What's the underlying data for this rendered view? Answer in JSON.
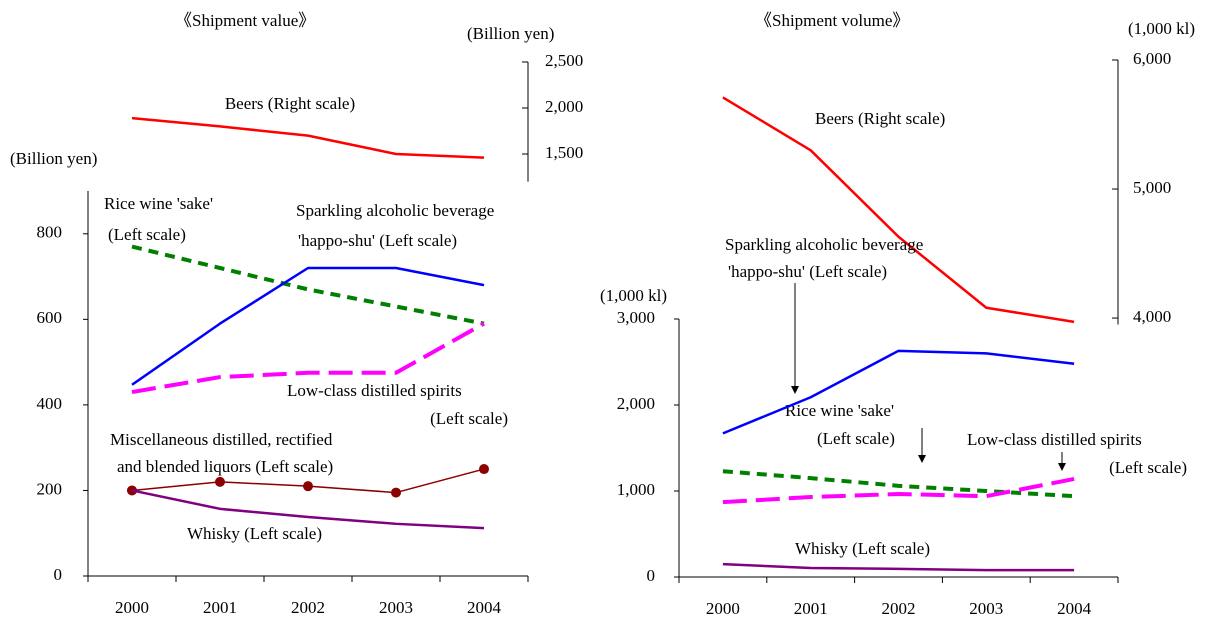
{
  "chart_data": [
    {
      "type": "line",
      "title": "《Shipment value》",
      "ylabel": "(Billion yen)",
      "y2label": "(Billion yen)",
      "categories": [
        "2000",
        "2001",
        "2002",
        "2003",
        "2004"
      ],
      "ylim": [
        0,
        900
      ],
      "yticks": [
        0,
        200,
        400,
        600,
        800
      ],
      "y2lim": [
        1200,
        2500
      ],
      "y2ticks": [
        {
          "value": 1500,
          "label": "1,500"
        },
        {
          "value": 2000,
          "label": "2,000"
        },
        {
          "value": 2500,
          "label": "2,500"
        }
      ],
      "series": [
        {
          "label": [
            "Beers (Right scale)"
          ],
          "color": "#ff0000",
          "axis": "y2",
          "values": [
            1890,
            1800,
            1700,
            1500,
            1460
          ]
        },
        {
          "label": [
            "Rice wine 'sake'",
            "(Left scale)"
          ],
          "color": "#008000",
          "style": "dotted",
          "values": [
            770,
            720,
            670,
            630,
            590
          ]
        },
        {
          "label": [
            "Sparkling alcoholic beverage",
            "'happo-shu' (Left scale)"
          ],
          "color": "#0000ff",
          "values": [
            447,
            590,
            720,
            720,
            680
          ]
        },
        {
          "label": [
            "Low-class distilled spirits",
            "(Left scale)"
          ],
          "color": "#ff00ff",
          "style": "dashed",
          "values": [
            430,
            465,
            475,
            475,
            590
          ]
        },
        {
          "label": [
            "Miscellaneous distilled, rectified",
            "and blended liquors (Left scale)"
          ],
          "color": "#8b0000",
          "markers": true,
          "values": [
            200,
            220,
            210,
            195,
            250
          ]
        },
        {
          "label": [
            "Whisky (Left scale)"
          ],
          "color": "#800080",
          "values": [
            200,
            157,
            138,
            122,
            112
          ]
        }
      ]
    },
    {
      "type": "line",
      "title": "《Shipment volume》",
      "ylabel": "(1,000 kl)",
      "y2label": "(1,000 kl)",
      "categories": [
        "2000",
        "2001",
        "2002",
        "2003",
        "2004"
      ],
      "ylim": [
        0,
        3000
      ],
      "yticks": [
        0,
        {
          "value": 1000,
          "label": "1,000"
        },
        {
          "value": 2000,
          "label": "2,000"
        },
        {
          "value": 3000,
          "label": "3,000"
        }
      ],
      "y2lim": [
        3950,
        6000
      ],
      "y2ticks": [
        {
          "value": 4000,
          "label": "4,000"
        },
        {
          "value": 5000,
          "label": "5,000"
        },
        {
          "value": 6000,
          "label": "6,000"
        }
      ],
      "series": [
        {
          "label": [
            "Beers (Right scale)"
          ],
          "color": "#ff0000",
          "axis": "y2",
          "values": [
            5710,
            5300,
            4630,
            4080,
            3970
          ]
        },
        {
          "label": [
            "Rice wine 'sake'",
            "(Left scale)"
          ],
          "color": "#008000",
          "style": "dotted",
          "values": [
            1230,
            1150,
            1060,
            1000,
            940
          ]
        },
        {
          "label": [
            "Sparkling alcoholic beverage",
            "'happo-shu' (Left scale)"
          ],
          "color": "#0000ff",
          "values": [
            1670,
            2090,
            2630,
            2600,
            2480
          ]
        },
        {
          "label": [
            "Low-class distilled spirits",
            "(Left scale)"
          ],
          "color": "#ff00ff",
          "style": "dashed",
          "values": [
            870,
            930,
            965,
            940,
            1140
          ]
        },
        {
          "label": [
            "Whisky (Left scale)"
          ],
          "color": "#800080",
          "values": [
            150,
            105,
            95,
            80,
            80
          ]
        }
      ]
    }
  ]
}
